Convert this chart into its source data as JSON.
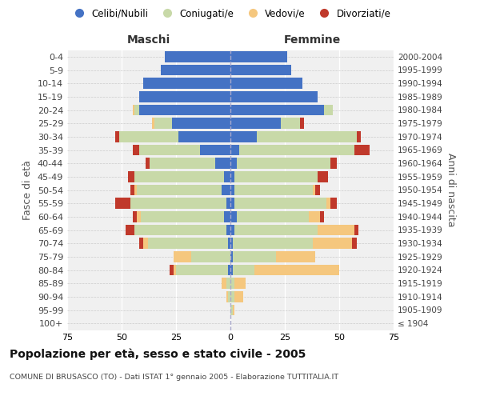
{
  "age_groups": [
    "100+",
    "95-99",
    "90-94",
    "85-89",
    "80-84",
    "75-79",
    "70-74",
    "65-69",
    "60-64",
    "55-59",
    "50-54",
    "45-49",
    "40-44",
    "35-39",
    "30-34",
    "25-29",
    "20-24",
    "15-19",
    "10-14",
    "5-9",
    "0-4"
  ],
  "birth_years": [
    "≤ 1904",
    "1905-1909",
    "1910-1914",
    "1915-1919",
    "1920-1924",
    "1925-1929",
    "1930-1934",
    "1935-1939",
    "1940-1944",
    "1945-1949",
    "1950-1954",
    "1955-1959",
    "1960-1964",
    "1965-1969",
    "1970-1974",
    "1975-1979",
    "1980-1984",
    "1985-1989",
    "1990-1994",
    "1995-1999",
    "2000-2004"
  ],
  "males": {
    "celibi": [
      0,
      0,
      0,
      0,
      1,
      0,
      1,
      2,
      3,
      2,
      4,
      3,
      7,
      14,
      24,
      27,
      42,
      42,
      40,
      32,
      30
    ],
    "coniugati": [
      0,
      0,
      1,
      2,
      24,
      18,
      37,
      42,
      38,
      44,
      39,
      41,
      30,
      28,
      27,
      8,
      2,
      0,
      0,
      0,
      0
    ],
    "vedovi": [
      0,
      0,
      1,
      2,
      1,
      8,
      2,
      0,
      2,
      0,
      1,
      0,
      0,
      0,
      0,
      1,
      1,
      0,
      0,
      0,
      0
    ],
    "divorziati": [
      0,
      0,
      0,
      0,
      2,
      0,
      2,
      4,
      2,
      7,
      2,
      3,
      2,
      3,
      2,
      0,
      0,
      0,
      0,
      0,
      0
    ]
  },
  "females": {
    "nubili": [
      0,
      0,
      0,
      0,
      1,
      1,
      1,
      2,
      3,
      2,
      2,
      2,
      3,
      4,
      12,
      23,
      43,
      40,
      33,
      28,
      26
    ],
    "coniugate": [
      0,
      1,
      2,
      2,
      10,
      20,
      37,
      38,
      33,
      42,
      36,
      38,
      43,
      53,
      46,
      9,
      4,
      0,
      0,
      0,
      0
    ],
    "vedove": [
      0,
      1,
      4,
      5,
      39,
      18,
      18,
      17,
      5,
      2,
      1,
      0,
      0,
      0,
      0,
      0,
      0,
      0,
      0,
      0,
      0
    ],
    "divorziate": [
      0,
      0,
      0,
      0,
      0,
      0,
      2,
      2,
      2,
      3,
      2,
      5,
      3,
      7,
      2,
      2,
      0,
      0,
      0,
      0,
      0
    ]
  },
  "colors": {
    "celibi": "#4472c4",
    "coniugati": "#c8d9a8",
    "vedovi": "#f5c77e",
    "divorziati": "#c0392b"
  },
  "xlim": 75,
  "title": "Popolazione per età, sesso e stato civile - 2005",
  "subtitle": "COMUNE DI BRUSASCO (TO) - Dati ISTAT 1° gennaio 2005 - Elaborazione TUTTITALIA.IT",
  "ylabel_left": "Fasce di età",
  "ylabel_right": "Anni di nascita",
  "xlabel_left": "Maschi",
  "xlabel_right": "Femmine",
  "bg_color": "#f0f0f0",
  "legend_labels": [
    "Celibi/Nubili",
    "Coniugati/e",
    "Vedovi/e",
    "Divorziati/e"
  ]
}
